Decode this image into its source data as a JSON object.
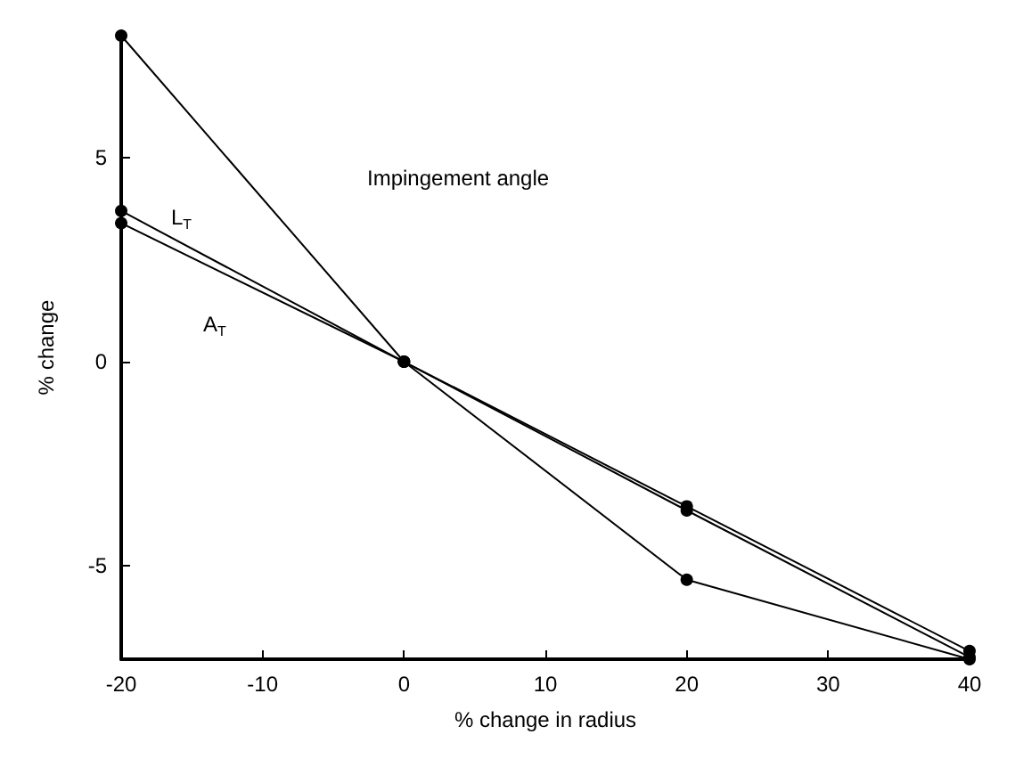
{
  "chart_data": {
    "type": "line",
    "xlabel": "% change in radius",
    "ylabel": "% change",
    "x": [
      -20,
      0,
      20,
      40
    ],
    "series": [
      {
        "color": "#000000",
        "values": [
          8.0,
          0,
          -5.35,
          -7.3
        ]
      },
      {
        "color": "#000000",
        "values": [
          3.7,
          0,
          -3.55,
          -7.1
        ]
      },
      {
        "color": "#000000",
        "values": [
          3.4,
          0,
          -3.65,
          -7.25
        ]
      }
    ],
    "annotations": [
      "Impingement angle",
      "L$_{T}$",
      "A$_{T}$"
    ],
    "xlim": [
      -20,
      40
    ],
    "xticks": [
      -20,
      -10,
      0,
      10,
      20,
      30,
      40
    ],
    "ylim": [
      -7.3,
      8
    ],
    "yticks": [
      -5,
      0,
      5
    ],
    "grid": false,
    "marker": "circle",
    "line_style": "solid"
  }
}
